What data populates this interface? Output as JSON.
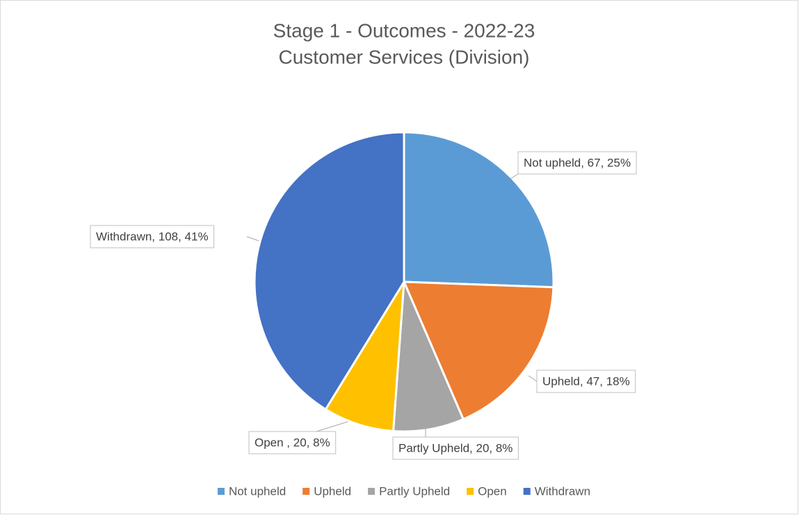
{
  "chart_data": {
    "type": "pie",
    "title": "Stage 1 - Outcomes - 2022-23",
    "subtitle": "Customer Services (Division)",
    "categories": [
      "Not upheld",
      "Upheld",
      "Partly Upheld",
      "Open",
      "Withdrawn"
    ],
    "values": [
      67,
      47,
      20,
      20,
      108
    ],
    "value_labels": [
      "Not upheld, 67, 25%",
      "Upheld, 47, 18%",
      "Partly Upheld, 20, 8%",
      "Open , 20, 8%",
      "Withdrawn, 108, 41%"
    ],
    "colors": [
      "#5b9bd5",
      "#ed7d31",
      "#a5a5a5",
      "#ffc000",
      "#4472c4"
    ],
    "legend": "bottom"
  }
}
